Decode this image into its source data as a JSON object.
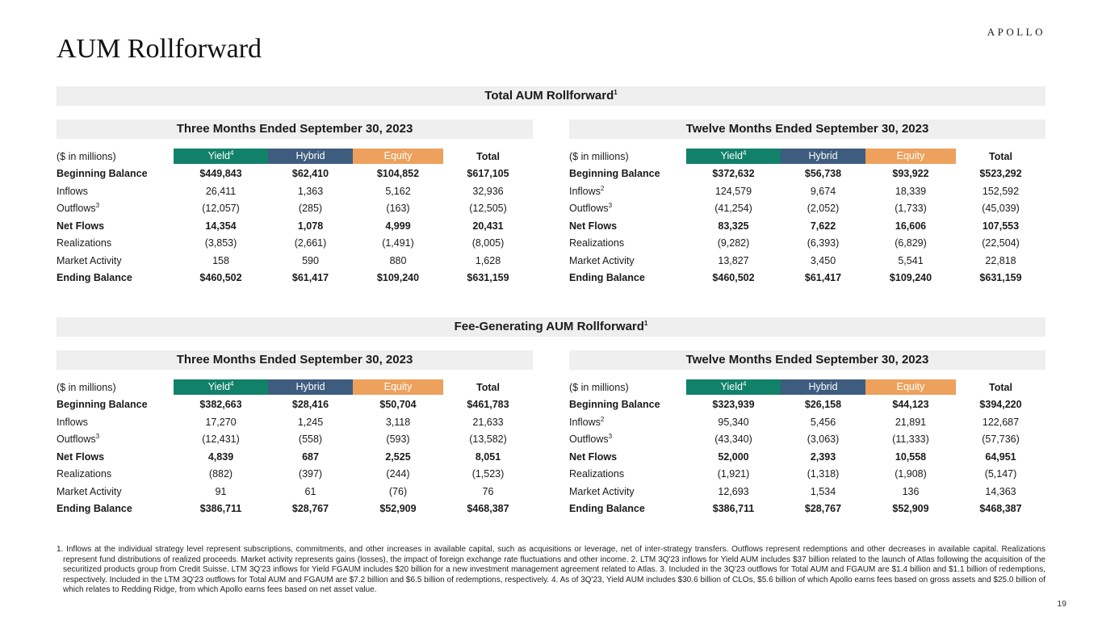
{
  "page": {
    "brand": "APOLLO",
    "title": "AUM Rollforward",
    "page_number": "19"
  },
  "colors": {
    "yield": "#11816A",
    "hybrid": "#3E5C7E",
    "equity": "#EDA15C",
    "band": "#EFEFEF"
  },
  "table_header": {
    "units": "($ in millions)",
    "yield_label": "Yield",
    "yield_sup": "4",
    "hybrid_label": "Hybrid",
    "equity_label": "Equity",
    "total_label": "Total"
  },
  "sections": [
    {
      "title": "Total AUM Rollforward",
      "title_sup": "1",
      "tables": [
        {
          "period": "Three Months Ended September 30, 2023",
          "rows": [
            {
              "label": "Beginning Balance",
              "sup": "",
              "bold": true,
              "values": [
                "$449,843",
                "$62,410",
                "$104,852",
                "$617,105"
              ]
            },
            {
              "label": "Inflows",
              "sup": "",
              "bold": false,
              "values": [
                "26,411",
                "1,363",
                "5,162",
                "32,936"
              ]
            },
            {
              "label": "Outflows",
              "sup": "3",
              "bold": false,
              "values": [
                "(12,057)",
                "(285)",
                "(163)",
                "(12,505)"
              ]
            },
            {
              "label": "Net Flows",
              "sup": "",
              "bold": true,
              "values": [
                "14,354",
                "1,078",
                "4,999",
                "20,431"
              ]
            },
            {
              "label": "Realizations",
              "sup": "",
              "bold": false,
              "values": [
                "(3,853)",
                "(2,661)",
                "(1,491)",
                "(8,005)"
              ]
            },
            {
              "label": "Market Activity",
              "sup": "",
              "bold": false,
              "values": [
                "158",
                "590",
                "880",
                "1,628"
              ]
            },
            {
              "label": "Ending Balance",
              "sup": "",
              "bold": true,
              "values": [
                "$460,502",
                "$61,417",
                "$109,240",
                "$631,159"
              ]
            }
          ]
        },
        {
          "period": "Twelve Months Ended September 30, 2023",
          "rows": [
            {
              "label": "Beginning Balance",
              "sup": "",
              "bold": true,
              "values": [
                "$372,632",
                "$56,738",
                "$93,922",
                "$523,292"
              ]
            },
            {
              "label": "Inflows",
              "sup": "2",
              "bold": false,
              "values": [
                "124,579",
                "9,674",
                "18,339",
                "152,592"
              ]
            },
            {
              "label": "Outflows",
              "sup": "3",
              "bold": false,
              "values": [
                "(41,254)",
                "(2,052)",
                "(1,733)",
                "(45,039)"
              ]
            },
            {
              "label": "Net Flows",
              "sup": "",
              "bold": true,
              "values": [
                "83,325",
                "7,622",
                "16,606",
                "107,553"
              ]
            },
            {
              "label": "Realizations",
              "sup": "",
              "bold": false,
              "values": [
                "(9,282)",
                "(6,393)",
                "(6,829)",
                "(22,504)"
              ]
            },
            {
              "label": "Market Activity",
              "sup": "",
              "bold": false,
              "values": [
                "13,827",
                "3,450",
                "5,541",
                "22,818"
              ]
            },
            {
              "label": "Ending Balance",
              "sup": "",
              "bold": true,
              "values": [
                "$460,502",
                "$61,417",
                "$109,240",
                "$631,159"
              ]
            }
          ]
        }
      ]
    },
    {
      "title": "Fee-Generating AUM Rollforward",
      "title_sup": "1",
      "tables": [
        {
          "period": "Three Months Ended September 30, 2023",
          "rows": [
            {
              "label": "Beginning Balance",
              "sup": "",
              "bold": true,
              "values": [
                "$382,663",
                "$28,416",
                "$50,704",
                "$461,783"
              ]
            },
            {
              "label": "Inflows",
              "sup": "",
              "bold": false,
              "values": [
                "17,270",
                "1,245",
                "3,118",
                "21,633"
              ]
            },
            {
              "label": "Outflows",
              "sup": "3",
              "bold": false,
              "values": [
                "(12,431)",
                "(558)",
                "(593)",
                "(13,582)"
              ]
            },
            {
              "label": "Net Flows",
              "sup": "",
              "bold": true,
              "values": [
                "4,839",
                "687",
                "2,525",
                "8,051"
              ]
            },
            {
              "label": "Realizations",
              "sup": "",
              "bold": false,
              "values": [
                "(882)",
                "(397)",
                "(244)",
                "(1,523)"
              ]
            },
            {
              "label": "Market Activity",
              "sup": "",
              "bold": false,
              "values": [
                "91",
                "61",
                "(76)",
                "76"
              ]
            },
            {
              "label": "Ending Balance",
              "sup": "",
              "bold": true,
              "values": [
                "$386,711",
                "$28,767",
                "$52,909",
                "$468,387"
              ]
            }
          ]
        },
        {
          "period": "Twelve Months Ended September 30, 2023",
          "rows": [
            {
              "label": "Beginning Balance",
              "sup": "",
              "bold": true,
              "values": [
                "$323,939",
                "$26,158",
                "$44,123",
                "$394,220"
              ]
            },
            {
              "label": "Inflows",
              "sup": "2",
              "bold": false,
              "values": [
                "95,340",
                "5,456",
                "21,891",
                "122,687"
              ]
            },
            {
              "label": "Outflows",
              "sup": "3",
              "bold": false,
              "values": [
                "(43,340)",
                "(3,063)",
                "(11,333)",
                "(57,736)"
              ]
            },
            {
              "label": "Net Flows",
              "sup": "",
              "bold": true,
              "values": [
                "52,000",
                "2,393",
                "10,558",
                "64,951"
              ]
            },
            {
              "label": "Realizations",
              "sup": "",
              "bold": false,
              "values": [
                "(1,921)",
                "(1,318)",
                "(1,908)",
                "(5,147)"
              ]
            },
            {
              "label": "Market Activity",
              "sup": "",
              "bold": false,
              "values": [
                "12,693",
                "1,534",
                "136",
                "14,363"
              ]
            },
            {
              "label": "Ending Balance",
              "sup": "",
              "bold": true,
              "values": [
                "$386,711",
                "$28,767",
                "$52,909",
                "$468,387"
              ]
            }
          ]
        }
      ]
    }
  ],
  "footnote": "1. Inflows at the individual strategy level represent subscriptions, commitments, and other increases in available capital, such as acquisitions or leverage, net of inter-strategy transfers. Outflows represent redemptions and other decreases in available capital. Realizations represent fund distributions of realized proceeds. Market activity represents gains (losses), the impact of foreign exchange rate fluctuations and other income. 2. LTM 3Q'23 inflows for Yield AUM includes $37 billion related to the launch of Atlas following the acquisition of the securitized products group from Credit Suisse. LTM 3Q'23 inflows for Yield FGAUM includes $20 billion for a new investment management agreement related to Atlas. 3. Included in the 3Q'23 outflows for Total AUM and FGAUM are $1.4 billion and $1.1 billion of redemptions, respectively. Included in the LTM 3Q'23 outflows for Total AUM and FGAUM are $7.2 billion and $6.5 billion of redemptions, respectively. 4. As of 3Q'23, Yield AUM includes $30.6 billion of CLOs, $5.6 billion of which Apollo earns fees based on gross assets and $25.0 billion of which relates to Redding Ridge, from which Apollo earns fees based on net asset value."
}
